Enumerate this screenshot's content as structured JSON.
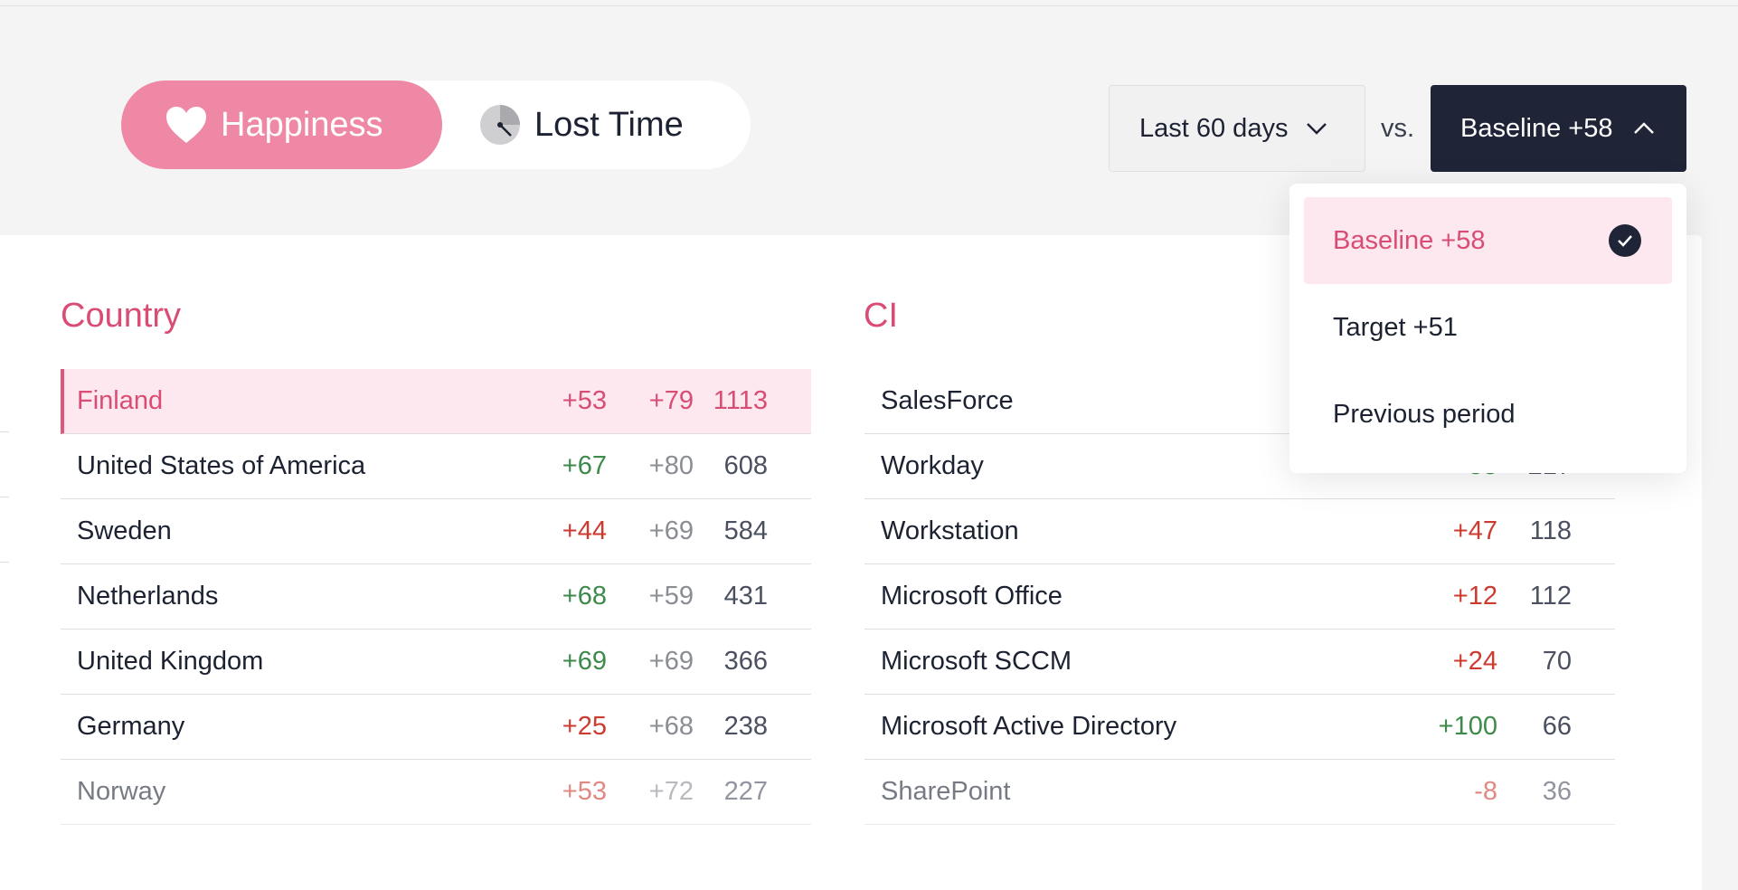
{
  "toggle": {
    "happiness_label": "Happiness",
    "lost_time_label": "Lost Time"
  },
  "filters": {
    "period_label": "Last 60 days",
    "vs_label": "vs.",
    "baseline_label": "Baseline +58"
  },
  "dropdown": {
    "items": [
      {
        "label": "Baseline +58",
        "selected": true
      },
      {
        "label": "Target +51",
        "selected": false
      },
      {
        "label": "Previous period",
        "selected": false
      }
    ]
  },
  "country": {
    "title": "Country",
    "rows": [
      {
        "name": "Finland",
        "score": "+53",
        "comparison": "+79",
        "count": "1113"
      },
      {
        "name": "United States of America",
        "score": "+67",
        "comparison": "+80",
        "count": "608"
      },
      {
        "name": "Sweden",
        "score": "+44",
        "comparison": "+69",
        "count": "584"
      },
      {
        "name": "Netherlands",
        "score": "+68",
        "comparison": "+59",
        "count": "431"
      },
      {
        "name": "United Kingdom",
        "score": "+69",
        "comparison": "+69",
        "count": "366"
      },
      {
        "name": "Germany",
        "score": "+25",
        "comparison": "+68",
        "count": "238"
      },
      {
        "name": "Norway",
        "score": "+53",
        "comparison": "+72",
        "count": "227"
      }
    ]
  },
  "ci": {
    "title": "CI",
    "rows": [
      {
        "name": "SalesForce",
        "score": "",
        "count": ""
      },
      {
        "name": "Workday",
        "score": "+58",
        "count": "217"
      },
      {
        "name": "Workstation",
        "score": "+47",
        "count": "118"
      },
      {
        "name": "Microsoft Office",
        "score": "+12",
        "count": "112"
      },
      {
        "name": "Microsoft SCCM",
        "score": "+24",
        "count": "70"
      },
      {
        "name": "Microsoft Active Directory",
        "score": "+100",
        "count": "66"
      },
      {
        "name": "SharePoint",
        "score": "-8",
        "count": "36"
      }
    ]
  },
  "colors": {
    "accent_pink": "#ee88a5",
    "title_pink": "#d94d74",
    "positive": "#3d8a4b",
    "negative": "#cc3b30",
    "dark_button": "#1f2537"
  }
}
